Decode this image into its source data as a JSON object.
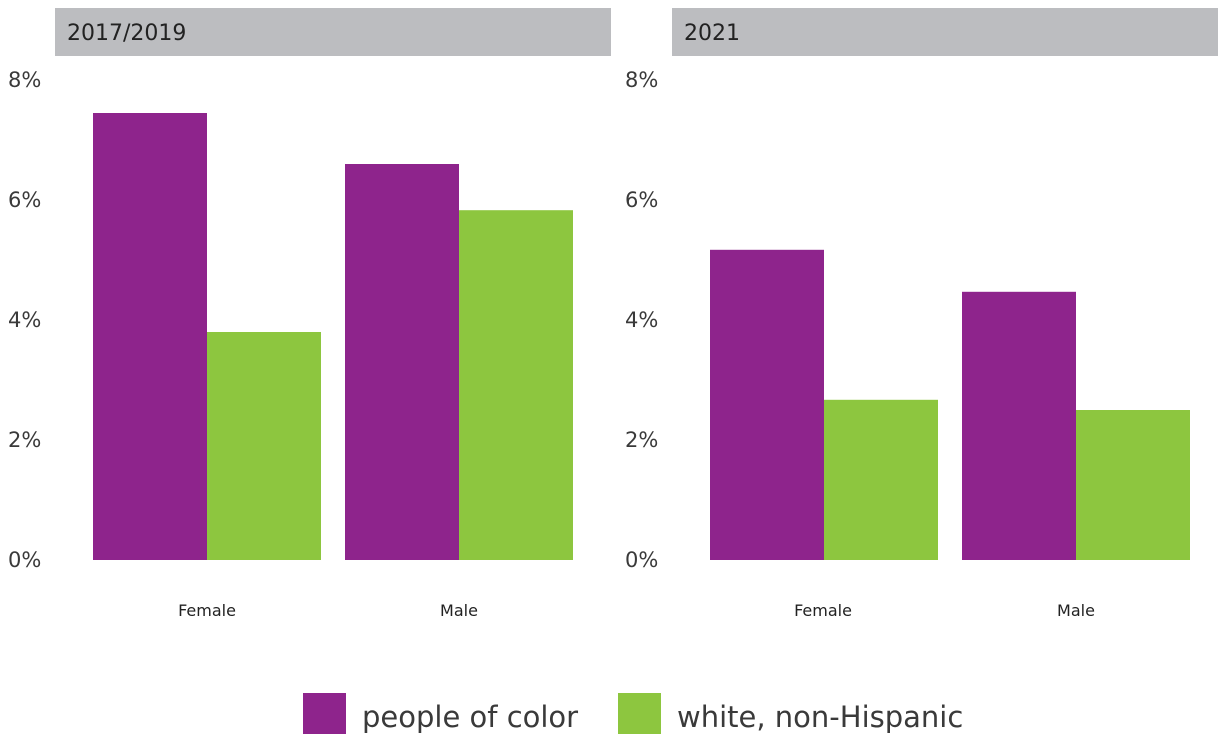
{
  "chart_data": [
    {
      "type": "bar",
      "title": "2017/2019",
      "categories": [
        "Female",
        "Male"
      ],
      "series": [
        {
          "name": "people of color",
          "values": [
            7.45,
            6.6
          ]
        },
        {
          "name": "white, non-Hispanic",
          "values": [
            3.8,
            5.83
          ]
        }
      ],
      "y_ticks": [
        "0%",
        "2%",
        "4%",
        "6%",
        "8%"
      ],
      "ylim": [
        0,
        8
      ],
      "xlabel": "",
      "ylabel": "",
      "grid": false
    },
    {
      "type": "bar",
      "title": "2021",
      "categories": [
        "Female",
        "Male"
      ],
      "series": [
        {
          "name": "people of color",
          "values": [
            5.17,
            4.47
          ]
        },
        {
          "name": "white, non-Hispanic",
          "values": [
            2.67,
            2.5
          ]
        }
      ],
      "y_ticks": [
        "0%",
        "2%",
        "4%",
        "6%",
        "8%"
      ],
      "ylim": [
        0,
        8
      ],
      "xlabel": "",
      "ylabel": "",
      "grid": false
    }
  ],
  "legend": {
    "placement": "bottom",
    "items": [
      {
        "label": "people of color",
        "color": "#8e248c"
      },
      {
        "label": "white, non-Hispanic",
        "color": "#8dc63f"
      }
    ]
  },
  "colors": {
    "people_of_color": "#8e248c",
    "white_non_hispanic": "#8dc63f",
    "panel_header": "#bcbdc0"
  }
}
